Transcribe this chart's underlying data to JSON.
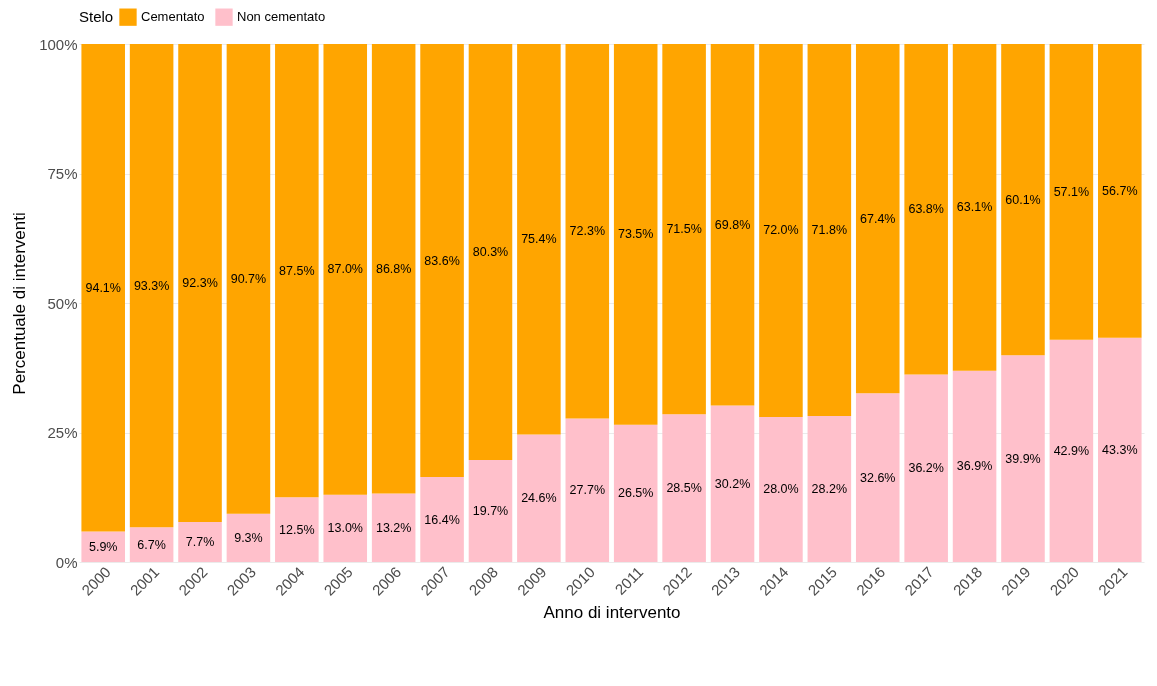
{
  "chart_data": {
    "type": "bar",
    "stacked": true,
    "xlabel": "Anno di intervento",
    "ylabel": "Percentuale di interventi",
    "legend_title": "Stelo",
    "legend": "top",
    "categories": [
      "2000",
      "2001",
      "2002",
      "2003",
      "2004",
      "2005",
      "2006",
      "2007",
      "2008",
      "2009",
      "2010",
      "2011",
      "2012",
      "2013",
      "2014",
      "2015",
      "2016",
      "2017",
      "2018",
      "2019",
      "2020",
      "2021"
    ],
    "series": [
      {
        "name": "Non cementato",
        "color": "#ffc0cb",
        "values": [
          5.9,
          6.7,
          7.7,
          9.3,
          12.5,
          13.0,
          13.2,
          16.4,
          19.7,
          24.6,
          27.7,
          26.5,
          28.5,
          30.2,
          28.0,
          28.2,
          32.6,
          36.2,
          36.9,
          39.9,
          42.9,
          43.3
        ],
        "value_labels": [
          "5.9%",
          "6.7%",
          "7.7%",
          "9.3%",
          "12.5%",
          "13.0%",
          "13.2%",
          "16.4%",
          "19.7%",
          "24.6%",
          "27.7%",
          "26.5%",
          "28.5%",
          "30.2%",
          "28.0%",
          "28.2%",
          "32.6%",
          "36.2%",
          "36.9%",
          "39.9%",
          "42.9%",
          "43.3%"
        ]
      },
      {
        "name": "Cementato",
        "color": "#ffa500",
        "values": [
          94.1,
          93.3,
          92.3,
          90.7,
          87.5,
          87.0,
          86.8,
          83.6,
          80.3,
          75.4,
          72.3,
          73.5,
          71.5,
          69.8,
          72.0,
          71.8,
          67.4,
          63.8,
          63.1,
          60.1,
          57.1,
          56.7
        ],
        "value_labels": [
          "94.1%",
          "93.3%",
          "92.3%",
          "90.7%",
          "87.5%",
          "87.0%",
          "86.8%",
          "83.6%",
          "80.3%",
          "75.4%",
          "72.3%",
          "73.5%",
          "71.5%",
          "69.8%",
          "72.0%",
          "71.8%",
          "67.4%",
          "63.8%",
          "63.1%",
          "60.1%",
          "57.1%",
          "56.7%"
        ]
      }
    ],
    "ylim": [
      0,
      100
    ],
    "yticks": [
      {
        "value": 0,
        "label": "0%"
      },
      {
        "value": 25,
        "label": "25%"
      },
      {
        "value": 50,
        "label": "50%"
      },
      {
        "value": 75,
        "label": "75%"
      },
      {
        "value": 100,
        "label": "100%"
      }
    ],
    "grid": "y"
  }
}
